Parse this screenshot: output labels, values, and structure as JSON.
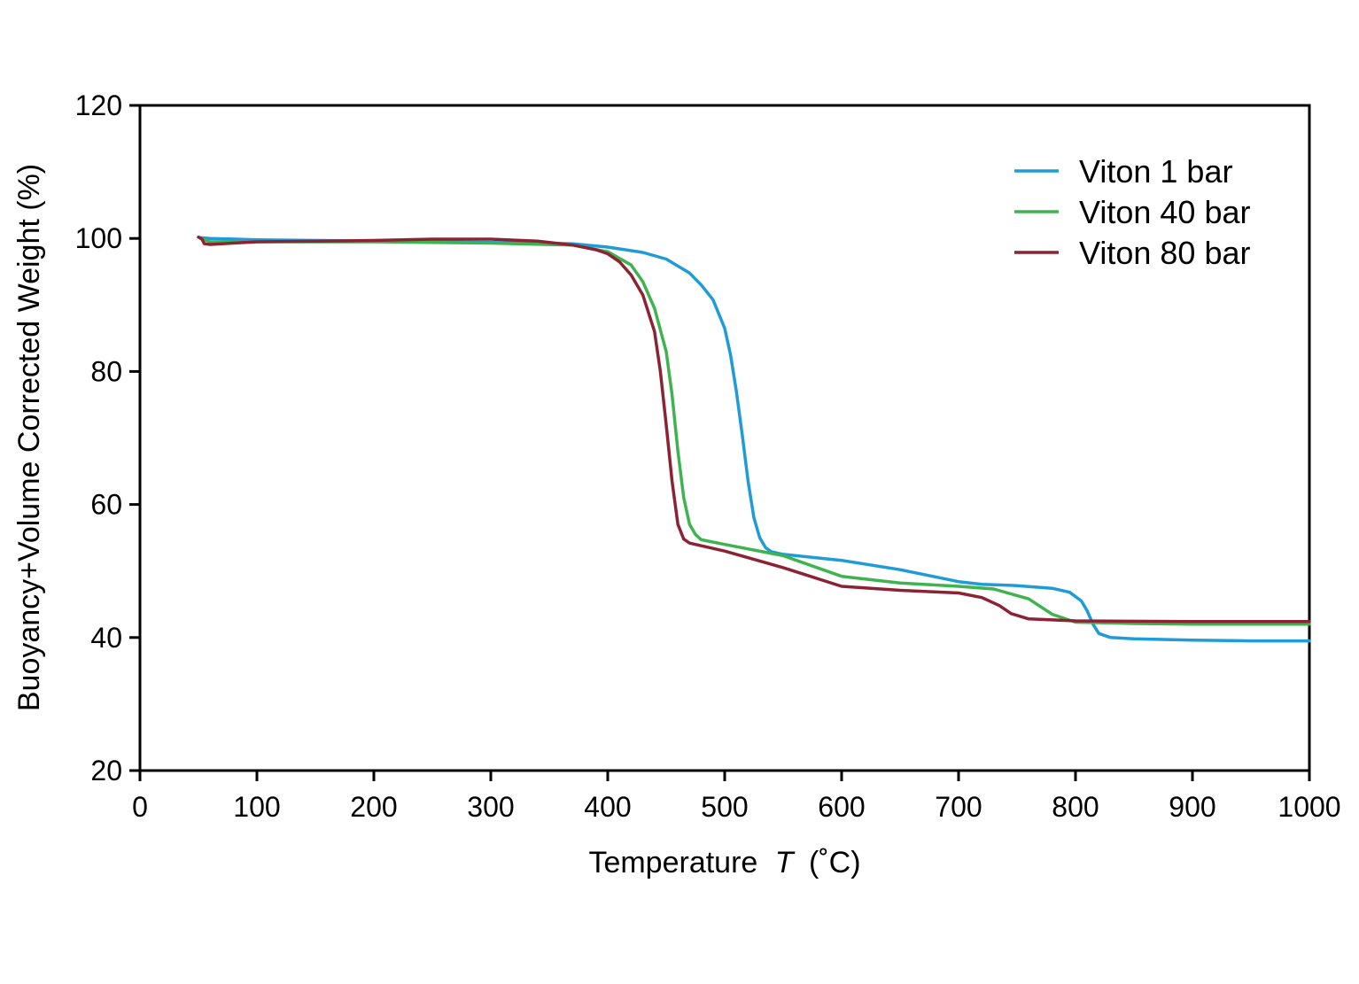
{
  "chart_data": {
    "type": "line",
    "xlabel": "Temperature",
    "xlabel_symbol": "T",
    "xlabel_unit": "(˚C)",
    "ylabel": "Buoyancy+Volume Corrected Weight (%)",
    "xlim": [
      0,
      1000
    ],
    "ylim": [
      20,
      120
    ],
    "x_ticks": [
      0,
      100,
      200,
      300,
      400,
      500,
      600,
      700,
      800,
      900,
      1000
    ],
    "y_ticks": [
      20,
      40,
      60,
      80,
      100,
      120
    ],
    "grid": false,
    "legend_position": "top-right",
    "series": [
      {
        "name": "Viton 1 bar",
        "color": "#1f9bd7",
        "points": [
          [
            52,
            100.1
          ],
          [
            60,
            100.0
          ],
          [
            100,
            99.8
          ],
          [
            200,
            99.6
          ],
          [
            300,
            99.4
          ],
          [
            370,
            99.2
          ],
          [
            400,
            98.7
          ],
          [
            430,
            97.9
          ],
          [
            450,
            96.9
          ],
          [
            470,
            94.8
          ],
          [
            480,
            93.0
          ],
          [
            490,
            90.8
          ],
          [
            500,
            86.5
          ],
          [
            505,
            82.5
          ],
          [
            510,
            77.0
          ],
          [
            515,
            70.5
          ],
          [
            520,
            63.5
          ],
          [
            525,
            58.0
          ],
          [
            530,
            55.0
          ],
          [
            535,
            53.5
          ],
          [
            540,
            52.9
          ],
          [
            550,
            52.5
          ],
          [
            600,
            51.6
          ],
          [
            650,
            50.2
          ],
          [
            700,
            48.4
          ],
          [
            720,
            48.0
          ],
          [
            750,
            47.8
          ],
          [
            780,
            47.4
          ],
          [
            795,
            46.8
          ],
          [
            805,
            45.5
          ],
          [
            810,
            44.0
          ],
          [
            815,
            42.0
          ],
          [
            820,
            40.6
          ],
          [
            830,
            40.0
          ],
          [
            850,
            39.8
          ],
          [
            900,
            39.6
          ],
          [
            950,
            39.5
          ],
          [
            1000,
            39.5
          ]
        ]
      },
      {
        "name": "Viton 40 bar",
        "color": "#3fb34f",
        "points": [
          [
            52,
            100.0
          ],
          [
            60,
            99.5
          ],
          [
            100,
            99.5
          ],
          [
            200,
            99.5
          ],
          [
            300,
            99.3
          ],
          [
            370,
            99.0
          ],
          [
            400,
            98.0
          ],
          [
            420,
            96.0
          ],
          [
            430,
            93.5
          ],
          [
            440,
            89.5
          ],
          [
            450,
            83.0
          ],
          [
            455,
            76.5
          ],
          [
            460,
            68.0
          ],
          [
            465,
            61.0
          ],
          [
            470,
            57.0
          ],
          [
            475,
            55.5
          ],
          [
            480,
            54.7
          ],
          [
            500,
            54.0
          ],
          [
            550,
            52.3
          ],
          [
            600,
            49.2
          ],
          [
            650,
            48.2
          ],
          [
            700,
            47.7
          ],
          [
            730,
            47.3
          ],
          [
            760,
            45.8
          ],
          [
            780,
            43.5
          ],
          [
            800,
            42.3
          ],
          [
            850,
            42.1
          ],
          [
            900,
            42.0
          ],
          [
            1000,
            42.0
          ]
        ]
      },
      {
        "name": "Viton 80 bar",
        "color": "#8b2335",
        "points": [
          [
            50,
            100.2
          ],
          [
            53,
            99.9
          ],
          [
            55,
            99.2
          ],
          [
            60,
            99.1
          ],
          [
            70,
            99.2
          ],
          [
            100,
            99.5
          ],
          [
            200,
            99.7
          ],
          [
            250,
            99.9
          ],
          [
            300,
            99.9
          ],
          [
            340,
            99.6
          ],
          [
            370,
            99.0
          ],
          [
            390,
            98.3
          ],
          [
            400,
            97.7
          ],
          [
            410,
            96.5
          ],
          [
            420,
            94.5
          ],
          [
            430,
            91.5
          ],
          [
            440,
            86.0
          ],
          [
            445,
            80.0
          ],
          [
            450,
            72.0
          ],
          [
            455,
            63.5
          ],
          [
            460,
            57.0
          ],
          [
            465,
            54.8
          ],
          [
            470,
            54.2
          ],
          [
            500,
            53.0
          ],
          [
            550,
            50.5
          ],
          [
            600,
            47.7
          ],
          [
            650,
            47.1
          ],
          [
            700,
            46.7
          ],
          [
            720,
            46.0
          ],
          [
            735,
            44.8
          ],
          [
            745,
            43.6
          ],
          [
            760,
            42.8
          ],
          [
            800,
            42.5
          ],
          [
            900,
            42.4
          ],
          [
            1000,
            42.4
          ]
        ]
      }
    ]
  }
}
